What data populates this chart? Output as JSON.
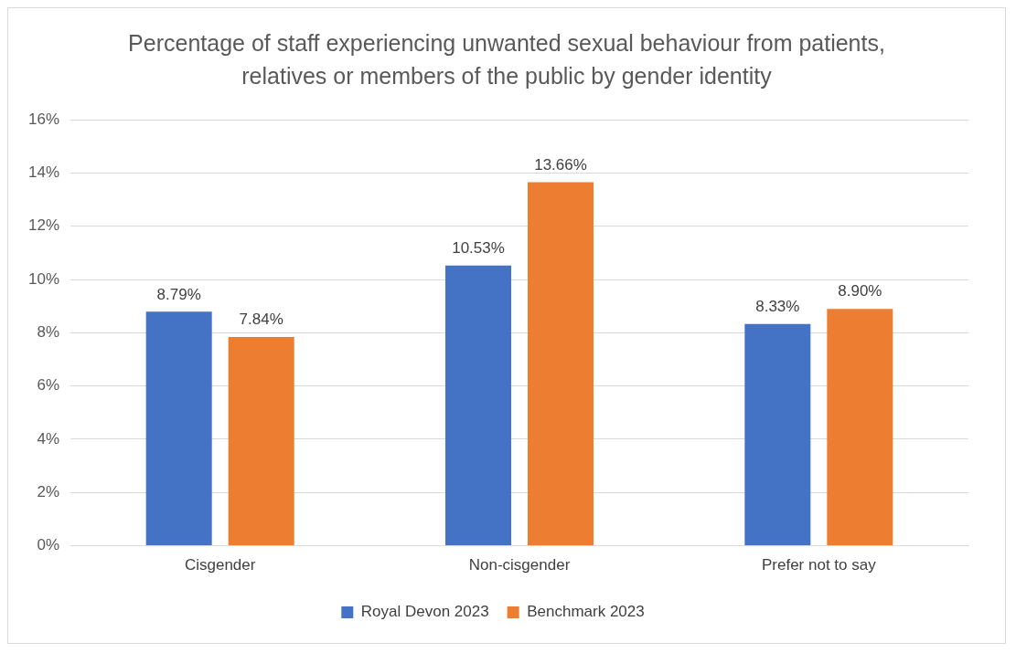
{
  "chart_data": {
    "type": "bar",
    "title": "Percentage of staff experiencing unwanted sexual behaviour from patients, relatives or members of the public by gender identity",
    "categories": [
      "Cisgender",
      "Non-cisgender",
      "Prefer not to say"
    ],
    "series": [
      {
        "name": "Royal Devon 2023",
        "color": "#4472c4",
        "values": [
          8.79,
          10.53,
          8.33
        ],
        "value_labels": [
          "8.79%",
          "10.53%",
          "8.33%"
        ]
      },
      {
        "name": "Benchmark 2023",
        "color": "#ed7d31",
        "values": [
          7.84,
          13.66,
          8.9
        ],
        "value_labels": [
          "7.84%",
          "13.66%",
          "8.90%"
        ]
      }
    ],
    "ylim": [
      0,
      16
    ],
    "yticks": [
      {
        "value": 0,
        "label": "0%"
      },
      {
        "value": 2,
        "label": "2%"
      },
      {
        "value": 4,
        "label": "4%"
      },
      {
        "value": 6,
        "label": "6%"
      },
      {
        "value": 8,
        "label": "8%"
      },
      {
        "value": 10,
        "label": "10%"
      },
      {
        "value": 12,
        "label": "12%"
      },
      {
        "value": 14,
        "label": "14%"
      },
      {
        "value": 16,
        "label": "16%"
      }
    ],
    "grid": "y",
    "legend": "bottom"
  }
}
